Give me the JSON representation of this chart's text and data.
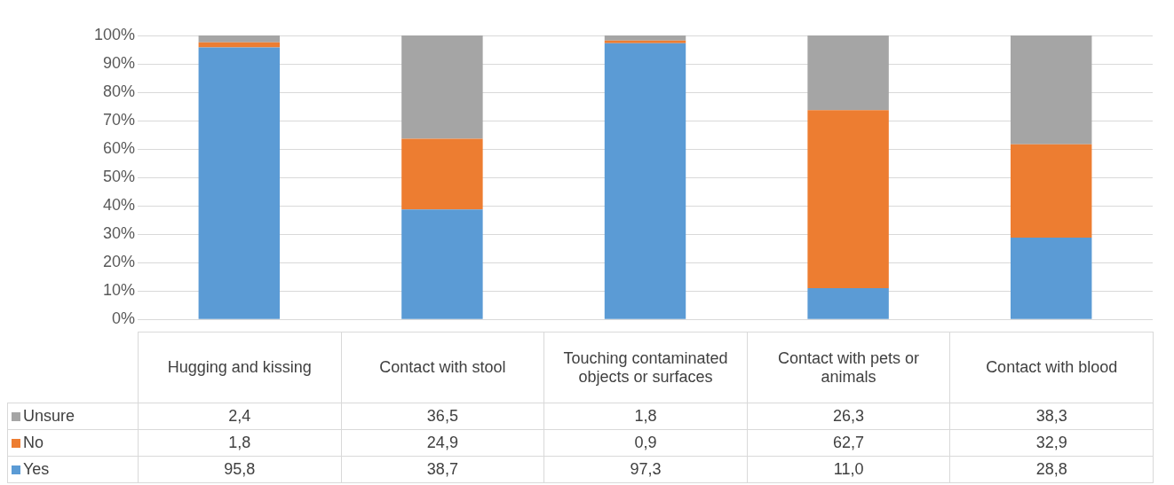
{
  "chart_data": {
    "type": "bar",
    "stacked": true,
    "categories": [
      "Hugging and kissing",
      "Contact with stool",
      "Touching contaminated objects or surfaces",
      "Contact with pets or animals",
      "Contact with blood"
    ],
    "series": [
      {
        "name": "Yes",
        "color": "#5b9bd5",
        "values": [
          95.8,
          38.7,
          97.3,
          11.0,
          28.8
        ],
        "value_labels": [
          "95,8",
          "38,7",
          "97,3",
          "11,0",
          "28,8"
        ]
      },
      {
        "name": "No",
        "color": "#ed7d31",
        "values": [
          1.8,
          24.9,
          0.9,
          62.7,
          32.9
        ],
        "value_labels": [
          "1,8",
          "24,9",
          "0,9",
          "62,7",
          "32,9"
        ]
      },
      {
        "name": "Unsure",
        "color": "#a5a5a5",
        "values": [
          2.4,
          36.5,
          1.8,
          26.3,
          38.3
        ],
        "value_labels": [
          "2,4",
          "36,5",
          "1,8",
          "26,3",
          "38,3"
        ]
      }
    ],
    "ylim": [
      0,
      100
    ],
    "yticks": [
      {
        "value": 0,
        "label": "0%"
      },
      {
        "value": 10,
        "label": "10%"
      },
      {
        "value": 20,
        "label": "20%"
      },
      {
        "value": 30,
        "label": "30%"
      },
      {
        "value": 40,
        "label": "40%"
      },
      {
        "value": 50,
        "label": "50%"
      },
      {
        "value": 60,
        "label": "60%"
      },
      {
        "value": 70,
        "label": "70%"
      },
      {
        "value": 80,
        "label": "80%"
      },
      {
        "value": 90,
        "label": "90%"
      },
      {
        "value": 100,
        "label": "100%"
      }
    ],
    "grid": "y",
    "legend": "bottom left"
  }
}
